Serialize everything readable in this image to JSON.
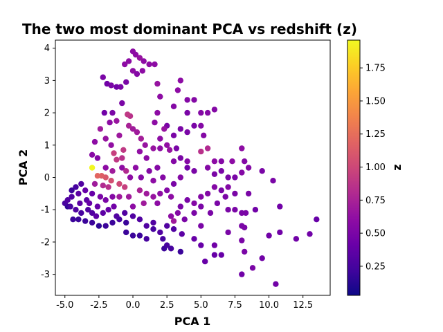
{
  "chart_data": {
    "type": "scatter",
    "title": "The two most dominant PCA vs redshift (z)",
    "xlabel": "PCA 1",
    "ylabel": "PCA 2",
    "xlim": [
      -5.7,
      14.5
    ],
    "ylim": [
      -3.65,
      4.25
    ],
    "xticks": [
      "-5.0",
      "-2.5",
      "0.0",
      "2.5",
      "5.0",
      "7.5",
      "10.0",
      "12.5"
    ],
    "yticks": [
      "-3",
      "-2",
      "-1",
      "0",
      "1",
      "2",
      "3",
      "4"
    ],
    "grid": false,
    "colorbar": {
      "label": "z",
      "colormap": "plasma",
      "range": [
        0.03,
        1.96
      ],
      "ticks": [
        "0.25",
        "0.50",
        "0.75",
        "1.00",
        "1.25",
        "1.50",
        "1.75"
      ]
    },
    "points": [
      [
        -3.0,
        0.3,
        1.95
      ],
      [
        -2.6,
        0.05,
        1.2
      ],
      [
        -2.3,
        0.05,
        1.15
      ],
      [
        -2.0,
        0.0,
        1.1
      ],
      [
        -1.6,
        -0.1,
        1.05
      ],
      [
        -1.0,
        -0.2,
        1.0
      ],
      [
        -0.6,
        -0.3,
        0.95
      ],
      [
        -2.8,
        -0.2,
        0.7
      ],
      [
        -2.2,
        -0.25,
        0.8
      ],
      [
        -1.8,
        -0.3,
        0.85
      ],
      [
        -1.4,
        0.75,
        0.95
      ],
      [
        -1.2,
        0.55,
        0.9
      ],
      [
        -0.8,
        0.6,
        0.85
      ],
      [
        -0.7,
        0.85,
        0.9
      ],
      [
        -0.4,
        1.95,
        0.9
      ],
      [
        -0.2,
        1.9,
        0.85
      ],
      [
        -0.3,
        1.6,
        0.75
      ],
      [
        0.0,
        1.5,
        0.7
      ],
      [
        0.3,
        1.4,
        0.7
      ],
      [
        0.6,
        1.2,
        0.72
      ],
      [
        0.9,
        1.0,
        0.65
      ],
      [
        -2.4,
        1.5,
        0.7
      ],
      [
        -2.0,
        1.2,
        0.65
      ],
      [
        -1.6,
        1.0,
        0.62
      ],
      [
        -1.0,
        1.3,
        0.68
      ],
      [
        -1.7,
        1.7,
        0.6
      ],
      [
        -1.2,
        1.75,
        0.66
      ],
      [
        -2.8,
        1.1,
        0.6
      ],
      [
        -3.0,
        0.7,
        0.58
      ],
      [
        -2.6,
        0.6,
        0.55
      ],
      [
        -0.5,
        0.2,
        0.8
      ],
      [
        0.2,
        0.3,
        0.6
      ],
      [
        0.5,
        0.8,
        0.62
      ],
      [
        1.0,
        0.6,
        0.6
      ],
      [
        1.5,
        0.9,
        0.65
      ],
      [
        2.0,
        0.9,
        0.6
      ],
      [
        2.5,
        1.0,
        0.62
      ],
      [
        2.7,
        0.85,
        0.65
      ],
      [
        3.0,
        0.5,
        0.55
      ],
      [
        4.0,
        0.5,
        0.55
      ],
      [
        5.0,
        0.8,
        0.85
      ],
      [
        5.5,
        0.9,
        0.8
      ],
      [
        6.0,
        0.5,
        0.6
      ],
      [
        -0.6,
        3.5,
        0.6
      ],
      [
        -0.3,
        3.6,
        0.6
      ],
      [
        0.0,
        3.9,
        0.6
      ],
      [
        0.2,
        3.8,
        0.6
      ],
      [
        0.5,
        3.7,
        0.65
      ],
      [
        0.8,
        3.6,
        0.6
      ],
      [
        1.2,
        3.5,
        0.6
      ],
      [
        0.0,
        3.3,
        0.6
      ],
      [
        0.3,
        3.2,
        0.55
      ],
      [
        0.7,
        3.3,
        0.6
      ],
      [
        1.6,
        3.5,
        0.6
      ],
      [
        1.8,
        2.9,
        0.65
      ],
      [
        2.0,
        2.5,
        0.6
      ],
      [
        1.8,
        2.0,
        0.6
      ],
      [
        1.6,
        1.7,
        0.6
      ],
      [
        2.3,
        1.5,
        0.65
      ],
      [
        2.0,
        1.2,
        0.6
      ],
      [
        -2.2,
        3.1,
        0.5
      ],
      [
        -1.9,
        2.9,
        0.45
      ],
      [
        -1.6,
        2.85,
        0.5
      ],
      [
        -1.2,
        2.8,
        0.45
      ],
      [
        -0.9,
        2.8,
        0.5
      ],
      [
        -0.5,
        2.95,
        0.5
      ],
      [
        -1.5,
        2.0,
        0.5
      ],
      [
        -2.1,
        2.0,
        0.45
      ],
      [
        -0.8,
        2.3,
        0.5
      ],
      [
        3.3,
        2.7,
        0.6
      ],
      [
        3.5,
        3.0,
        0.6
      ],
      [
        3.0,
        2.2,
        0.55
      ],
      [
        4.0,
        2.4,
        0.55
      ],
      [
        4.5,
        2.4,
        0.55
      ],
      [
        4.0,
        2.0,
        0.5
      ],
      [
        5.0,
        2.0,
        0.55
      ],
      [
        5.5,
        2.0,
        0.55
      ],
      [
        6.0,
        2.1,
        0.55
      ],
      [
        4.5,
        1.6,
        0.5
      ],
      [
        5.0,
        1.6,
        0.55
      ],
      [
        5.2,
        1.3,
        0.55
      ],
      [
        4.0,
        1.4,
        0.5
      ],
      [
        3.5,
        1.5,
        0.5
      ],
      [
        3.0,
        1.3,
        0.5
      ],
      [
        2.5,
        1.6,
        0.5
      ],
      [
        3.2,
        0.9,
        0.5
      ],
      [
        3.5,
        0.6,
        0.5
      ],
      [
        4.0,
        0.3,
        0.45
      ],
      [
        4.5,
        0.2,
        0.5
      ],
      [
        5.5,
        0.3,
        0.55
      ],
      [
        6.0,
        0.1,
        0.5
      ],
      [
        6.5,
        0.2,
        0.5
      ],
      [
        7.0,
        0.0,
        0.5
      ],
      [
        7.5,
        0.0,
        0.5
      ],
      [
        6.5,
        0.5,
        0.55
      ],
      [
        7.3,
        0.5,
        0.6
      ],
      [
        8.0,
        0.9,
        0.6
      ],
      [
        8.2,
        0.5,
        0.55
      ],
      [
        8.0,
        0.15,
        0.55
      ],
      [
        8.5,
        0.3,
        0.55
      ],
      [
        9.5,
        0.2,
        0.5
      ],
      [
        10.3,
        -0.1,
        0.5
      ],
      [
        7.0,
        -0.3,
        0.55
      ],
      [
        6.5,
        -0.4,
        0.5
      ],
      [
        6.0,
        -0.3,
        0.55
      ],
      [
        5.5,
        -0.5,
        0.55
      ],
      [
        5.0,
        -0.6,
        0.55
      ],
      [
        6.8,
        -0.6,
        0.5
      ],
      [
        7.5,
        -0.5,
        0.5
      ],
      [
        8.5,
        -0.5,
        0.5
      ],
      [
        6.2,
        -0.8,
        0.5
      ],
      [
        7.0,
        -1.0,
        0.5
      ],
      [
        7.5,
        -1.0,
        0.5
      ],
      [
        8.0,
        -1.1,
        0.5
      ],
      [
        8.3,
        -1.1,
        0.5
      ],
      [
        5.0,
        -0.9,
        0.5
      ],
      [
        5.7,
        -1.1,
        0.5
      ],
      [
        4.5,
        -0.8,
        0.55
      ],
      [
        4.0,
        -0.7,
        0.5
      ],
      [
        3.5,
        -0.9,
        0.5
      ],
      [
        3.3,
        -1.1,
        0.55
      ],
      [
        3.8,
        -1.3,
        0.5
      ],
      [
        4.5,
        -1.1,
        0.5
      ],
      [
        5.0,
        -1.5,
        0.5
      ],
      [
        2.8,
        -1.2,
        0.6
      ],
      [
        3.0,
        -1.35,
        0.7
      ],
      [
        2.5,
        -0.4,
        0.55
      ],
      [
        2.8,
        -0.6,
        0.6
      ],
      [
        2.0,
        -0.5,
        0.6
      ],
      [
        1.8,
        -0.8,
        0.6
      ],
      [
        1.5,
        -0.6,
        0.65
      ],
      [
        1.0,
        -0.5,
        0.7
      ],
      [
        0.5,
        -0.4,
        0.75
      ],
      [
        0.8,
        -0.8,
        0.7
      ],
      [
        -0.3,
        -0.6,
        0.7
      ],
      [
        -1.0,
        -0.6,
        0.7
      ],
      [
        0.0,
        -0.9,
        0.6
      ],
      [
        -0.2,
        0.0,
        0.6
      ],
      [
        0.6,
        0.0,
        0.55
      ],
      [
        1.2,
        0.2,
        0.55
      ],
      [
        1.8,
        0.3,
        0.55
      ],
      [
        2.2,
        0.0,
        0.55
      ],
      [
        1.5,
        -0.1,
        0.6
      ],
      [
        3.5,
        0.0,
        0.55
      ],
      [
        3.0,
        -0.2,
        0.5
      ],
      [
        -0.8,
        0.3,
        0.6
      ],
      [
        -1.5,
        0.2,
        0.7
      ],
      [
        -2.0,
        0.3,
        0.6
      ],
      [
        -2.4,
        -0.6,
        0.5
      ],
      [
        -3.0,
        -0.5,
        0.4
      ],
      [
        -3.5,
        -0.4,
        0.4
      ],
      [
        -4.0,
        -0.5,
        0.35
      ],
      [
        -4.5,
        -0.6,
        0.3
      ],
      [
        -4.8,
        -0.7,
        0.3
      ],
      [
        -5.0,
        -0.8,
        0.25
      ],
      [
        -4.6,
        -0.9,
        0.25
      ],
      [
        -4.2,
        -1.0,
        0.3
      ],
      [
        -3.8,
        -1.1,
        0.25
      ],
      [
        -3.3,
        -1.0,
        0.3
      ],
      [
        -3.0,
        -1.1,
        0.3
      ],
      [
        -2.7,
        -1.2,
        0.35
      ],
      [
        -2.2,
        -1.1,
        0.35
      ],
      [
        -1.8,
        -1.0,
        0.4
      ],
      [
        -1.4,
        -0.9,
        0.45
      ],
      [
        -4.4,
        -1.3,
        0.2
      ],
      [
        -4.0,
        -1.3,
        0.2
      ],
      [
        -3.5,
        -1.35,
        0.2
      ],
      [
        -3.0,
        -1.4,
        0.2
      ],
      [
        -2.5,
        -1.5,
        0.15
      ],
      [
        -2.0,
        -1.5,
        0.2
      ],
      [
        -1.5,
        -1.4,
        0.2
      ],
      [
        -1.0,
        -1.3,
        0.25
      ],
      [
        -0.5,
        -1.4,
        0.2
      ],
      [
        -1.2,
        -1.2,
        0.3
      ],
      [
        -0.6,
        -1.1,
        0.3
      ],
      [
        0.0,
        -1.2,
        0.3
      ],
      [
        0.5,
        -1.3,
        0.3
      ],
      [
        1.0,
        -1.5,
        0.3
      ],
      [
        1.5,
        -1.4,
        0.3
      ],
      [
        -4.8,
        -0.9,
        0.15
      ],
      [
        -4.5,
        -0.4,
        0.2
      ],
      [
        -4.2,
        -0.3,
        0.25
      ],
      [
        -3.8,
        -0.2,
        0.3
      ],
      [
        -3.4,
        -0.7,
        0.35
      ],
      [
        -2.0,
        -0.7,
        0.5
      ],
      [
        -1.5,
        -0.6,
        0.55
      ],
      [
        -2.6,
        -0.9,
        0.4
      ],
      [
        -3.2,
        -0.8,
        0.4
      ],
      [
        -3.9,
        -0.8,
        0.35
      ],
      [
        -0.5,
        -1.7,
        0.2
      ],
      [
        0.0,
        -1.8,
        0.2
      ],
      [
        0.5,
        -1.8,
        0.2
      ],
      [
        1.0,
        -1.9,
        0.25
      ],
      [
        1.5,
        -1.6,
        0.25
      ],
      [
        2.0,
        -1.7,
        0.3
      ],
      [
        2.2,
        -1.9,
        0.25
      ],
      [
        2.5,
        -2.1,
        0.25
      ],
      [
        2.8,
        -2.2,
        0.25
      ],
      [
        3.5,
        -2.3,
        0.2
      ],
      [
        2.3,
        -2.2,
        0.2
      ],
      [
        2.5,
        -1.5,
        0.3
      ],
      [
        3.0,
        -1.6,
        0.3
      ],
      [
        3.6,
        -1.75,
        0.35
      ],
      [
        4.5,
        -1.9,
        0.4
      ],
      [
        5.0,
        -2.1,
        0.4
      ],
      [
        5.3,
        -2.6,
        0.4
      ],
      [
        6.0,
        -2.4,
        0.4
      ],
      [
        6.5,
        -2.4,
        0.4
      ],
      [
        7.0,
        -1.7,
        0.5
      ],
      [
        8.0,
        -1.5,
        0.5
      ],
      [
        8.0,
        -1.95,
        0.5
      ],
      [
        8.2,
        -2.3,
        0.5
      ],
      [
        8.8,
        -2.8,
        0.5
      ],
      [
        9.5,
        -2.5,
        0.45
      ],
      [
        8.0,
        -3.0,
        0.45
      ],
      [
        10.5,
        -3.3,
        0.45
      ],
      [
        10.0,
        -1.8,
        0.45
      ],
      [
        10.8,
        -1.7,
        0.45
      ],
      [
        12.0,
        -1.9,
        0.45
      ],
      [
        13.0,
        -1.75,
        0.45
      ],
      [
        13.5,
        -1.3,
        0.4
      ],
      [
        10.8,
        -0.9,
        0.45
      ],
      [
        9.0,
        -1.0,
        0.45
      ],
      [
        8.2,
        -1.55,
        0.5
      ],
      [
        6.0,
        -2.1,
        0.45
      ]
    ]
  }
}
